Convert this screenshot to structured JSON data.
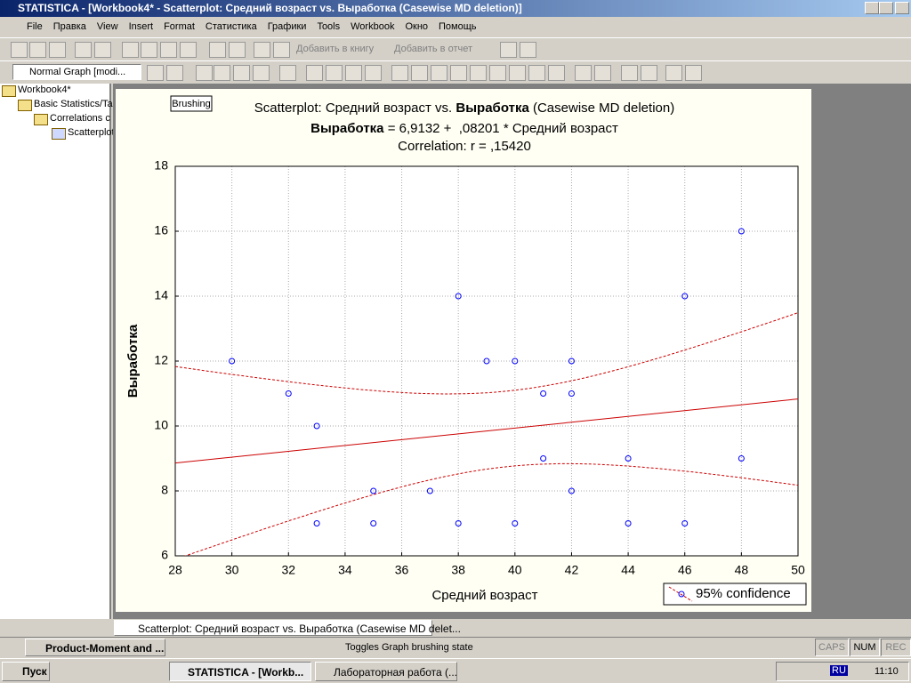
{
  "window": {
    "title": "STATISTICA - [Workbook4* - Scatterplot: Средний возраст vs. Выработка (Casewise MD deletion)]"
  },
  "menu": [
    "File",
    "Правка",
    "View",
    "Insert",
    "Format",
    "Статистика",
    "Графики",
    "Tools",
    "Workbook",
    "Окно",
    "Помощь"
  ],
  "toolbar": {
    "add_book": "Добавить в книгу",
    "add_report": "Добавить в отчет",
    "graph_type": "Normal Graph [modi..."
  },
  "tree": [
    "Workbook4*",
    "Basic Statistics/Ta",
    "Correlations c",
    "Scatterplot"
  ],
  "tab": "Scatterplot: Средний возраст vs. Выработка (Casewise MD delet...",
  "status": {
    "task": "Product-Moment and ...",
    "message": "Toggles Graph brushing state",
    "caps": "CAPS",
    "num": "NUM",
    "rec": "REC"
  },
  "taskbar": {
    "start": "Пуск",
    "items": [
      "STATISTICA - [Workb...",
      "Лабораторная работа (..."
    ],
    "lang": "RU",
    "clock": "11:10"
  },
  "brushing": "Brushing",
  "chart_data": {
    "type": "scatter",
    "title_parts": [
      "Scatterplot: Средний возраст vs. ",
      "Выработка",
      " (Casewise MD deletion)"
    ],
    "subtitle_parts": [
      "Выработка",
      " = 6,9132 +  ,08201 * Средний возраст"
    ],
    "subtitle2": "Correlation: r = ,15420",
    "xlabel": "Средний возраст",
    "ylabel": "Выработка",
    "legend": "95% confidence",
    "x": [
      30,
      32,
      33,
      33,
      35,
      35,
      37,
      38,
      38,
      39,
      40,
      40,
      41,
      41,
      42,
      42,
      42,
      44,
      44,
      46,
      46,
      48,
      48
    ],
    "y": [
      12,
      11,
      10,
      7,
      8,
      7,
      8,
      14,
      7,
      12,
      12,
      7,
      11,
      9,
      12,
      11,
      8,
      9,
      7,
      14,
      7,
      16,
      9
    ],
    "point_color": "#0000ff",
    "fit_color": "#cc0000",
    "xlim": [
      28,
      50
    ],
    "xticks": [
      28,
      30,
      32,
      34,
      36,
      38,
      40,
      42,
      44,
      46,
      48,
      50
    ],
    "ylim": [
      6,
      18
    ],
    "yticks": [
      6,
      8,
      10,
      12,
      14,
      16,
      18
    ],
    "grid": true
  }
}
